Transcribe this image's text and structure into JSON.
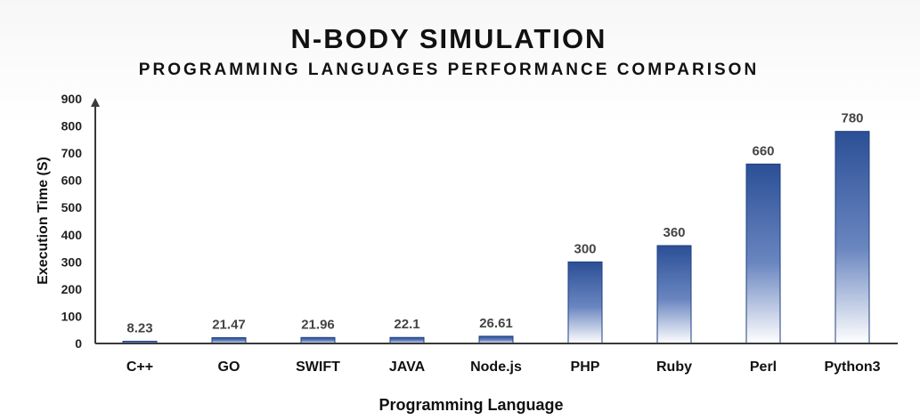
{
  "chart_data": {
    "type": "bar",
    "title": "N-BODY SIMULATION",
    "subtitle": "PROGRAMMING LANGUAGES PERFORMANCE COMPARISON",
    "xlabel": "Programming Language",
    "ylabel": "Execution Time (S)",
    "ylim": [
      0,
      900
    ],
    "yticks": [
      "0",
      "100",
      "200",
      "300",
      "400",
      "500",
      "600",
      "700",
      "800",
      "900"
    ],
    "categories": [
      "C++",
      "GO",
      "SWIFT",
      "JAVA",
      "Node.js",
      "PHP",
      "Ruby",
      "Perl",
      "Python3"
    ],
    "values": [
      8.23,
      21.47,
      21.96,
      22.1,
      26.61,
      300,
      360,
      660,
      780
    ],
    "value_labels": [
      "8.23",
      "21.47",
      "21.96",
      "22.1",
      "26.61",
      "300",
      "360",
      "660",
      "780"
    ],
    "grid": false,
    "legend": "none",
    "colors": {
      "bar_top": "#2b4f96",
      "bar_bottom": "#ffffff",
      "bar_stroke": "#203f80",
      "axis": "#3a3a3a"
    }
  }
}
